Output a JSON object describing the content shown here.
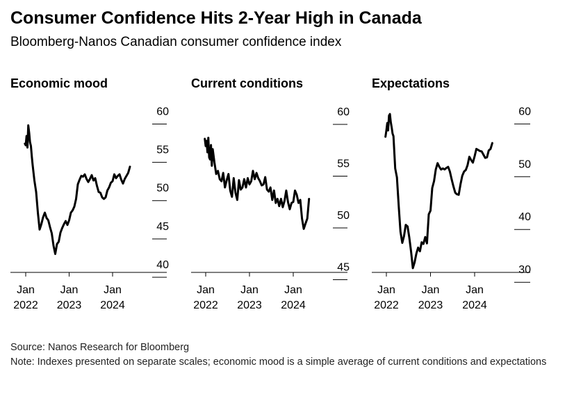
{
  "header": {
    "title": "Consumer Confidence Hits 2-Year High in Canada",
    "subtitle": "Bloomberg-Nanos Canadian consumer confidence index"
  },
  "footer": {
    "source": "Source: Nanos Research for Bloomberg",
    "note": "Note: Indexes presented on separate scales; economic mood is a simple average of current conditions and expectations"
  },
  "chart_data": [
    {
      "type": "line",
      "title": "Economic mood",
      "x_ticks": [
        {
          "label": [
            "Jan",
            "2022"
          ],
          "date": 2022.0
        },
        {
          "label": [
            "Jan",
            "2023"
          ],
          "date": 2023.0
        },
        {
          "label": [
            "Jan",
            "2024"
          ],
          "date": 2024.0
        }
      ],
      "y_ticks": [
        40,
        45,
        50,
        55,
        60
      ],
      "ylim": [
        39.0,
        60.5
      ],
      "series": [
        {
          "x": [
            2021.98,
            2022.0,
            2022.02,
            2022.04,
            2022.06,
            2022.08,
            2022.1,
            2022.12,
            2022.14,
            2022.16,
            2022.2,
            2022.24,
            2022.28,
            2022.32,
            2022.36,
            2022.4,
            2022.44,
            2022.48,
            2022.52,
            2022.56,
            2022.6,
            2022.64,
            2022.68,
            2022.72,
            2022.76,
            2022.8,
            2022.84,
            2022.88,
            2022.92,
            2022.96,
            2023.0,
            2023.04,
            2023.08,
            2023.12,
            2023.16,
            2023.2,
            2023.24,
            2023.28,
            2023.32,
            2023.36,
            2023.4,
            2023.44,
            2023.48,
            2023.52,
            2023.56,
            2023.6,
            2023.64,
            2023.68,
            2023.72,
            2023.76,
            2023.8,
            2023.84,
            2023.88,
            2023.92,
            2023.96,
            2024.0,
            2024.04,
            2024.08,
            2024.12,
            2024.16,
            2024.2,
            2024.24,
            2024.28,
            2024.32,
            2024.36,
            2024.4
          ],
          "y": [
            55.8,
            55.6,
            56.8,
            55.3,
            58.2,
            57.2,
            56.0,
            55.5,
            54.1,
            53.0,
            51.0,
            49.5,
            46.8,
            44.6,
            45.3,
            46.2,
            46.8,
            46.1,
            45.8,
            44.9,
            44.1,
            42.5,
            41.4,
            42.7,
            43.0,
            44.2,
            44.8,
            45.3,
            45.7,
            45.2,
            45.8,
            46.8,
            47.1,
            47.6,
            48.6,
            50.5,
            51.1,
            51.6,
            51.5,
            51.8,
            51.2,
            50.8,
            51.2,
            51.7,
            51.0,
            51.3,
            50.3,
            49.5,
            49.4,
            48.8,
            48.6,
            48.8,
            49.7,
            50.1,
            50.7,
            50.9,
            51.8,
            51.3,
            51.6,
            51.8,
            51.1,
            50.6,
            51.2,
            51.6,
            52.0,
            52.8
          ]
        }
      ]
    },
    {
      "type": "line",
      "title": "Current conditions",
      "x_ticks": [
        {
          "label": [
            "Jan",
            "2022"
          ],
          "date": 2022.0
        },
        {
          "label": [
            "Jan",
            "2023"
          ],
          "date": 2023.0
        },
        {
          "label": [
            "Jan",
            "2024"
          ],
          "date": 2024.0
        }
      ],
      "y_ticks": [
        45,
        50,
        55,
        60
      ],
      "ylim": [
        44.5,
        60.4
      ],
      "series": [
        {
          "x": [
            2021.98,
            2022.0,
            2022.02,
            2022.04,
            2022.06,
            2022.08,
            2022.1,
            2022.12,
            2022.14,
            2022.16,
            2022.2,
            2022.24,
            2022.28,
            2022.32,
            2022.36,
            2022.4,
            2022.44,
            2022.48,
            2022.52,
            2022.56,
            2022.6,
            2022.64,
            2022.68,
            2022.72,
            2022.76,
            2022.8,
            2022.84,
            2022.88,
            2022.92,
            2022.96,
            2023.0,
            2023.04,
            2023.08,
            2023.12,
            2023.16,
            2023.2,
            2023.24,
            2023.28,
            2023.32,
            2023.36,
            2023.4,
            2023.44,
            2023.48,
            2023.52,
            2023.56,
            2023.6,
            2023.64,
            2023.68,
            2023.72,
            2023.76,
            2023.8,
            2023.84,
            2023.88,
            2023.92,
            2023.96,
            2024.0,
            2024.04,
            2024.08,
            2024.12,
            2024.16,
            2024.2,
            2024.24,
            2024.28,
            2024.32,
            2024.36
          ],
          "y": [
            57.4,
            56.7,
            57.2,
            56.1,
            57.5,
            55.6,
            55.4,
            56.8,
            54.8,
            56.4,
            55.1,
            54.0,
            54.3,
            53.5,
            53.3,
            54.1,
            52.7,
            53.4,
            54.0,
            52.4,
            51.8,
            53.6,
            52.2,
            51.5,
            53.4,
            52.5,
            52.7,
            53.5,
            52.7,
            53.6,
            53.0,
            53.3,
            54.3,
            53.5,
            54.1,
            53.6,
            53.3,
            52.9,
            53.0,
            53.7,
            52.5,
            52.3,
            52.7,
            51.5,
            52.4,
            51.2,
            51.6,
            50.9,
            51.6,
            50.8,
            51.4,
            52.4,
            51.3,
            50.6,
            51.2,
            51.3,
            52.4,
            52.0,
            51.2,
            51.5,
            49.7,
            48.7,
            49.2,
            49.7,
            51.6
          ]
        }
      ]
    },
    {
      "type": "line",
      "title": "Expectations",
      "x_ticks": [
        {
          "label": [
            "Jan",
            "2022"
          ],
          "date": 2022.0
        },
        {
          "label": [
            "Jan",
            "2023"
          ],
          "date": 2023.0
        },
        {
          "label": [
            "Jan",
            "2024"
          ],
          "date": 2024.0
        }
      ],
      "y_ticks": [
        30,
        40,
        50,
        60
      ],
      "ylim": [
        29.5,
        60.7
      ],
      "series": [
        {
          "x": [
            2021.98,
            2022.0,
            2022.02,
            2022.04,
            2022.06,
            2022.08,
            2022.1,
            2022.12,
            2022.14,
            2022.16,
            2022.2,
            2022.24,
            2022.28,
            2022.32,
            2022.36,
            2022.4,
            2022.44,
            2022.48,
            2022.52,
            2022.56,
            2022.6,
            2022.64,
            2022.68,
            2022.72,
            2022.76,
            2022.8,
            2022.84,
            2022.88,
            2022.92,
            2022.96,
            2023.0,
            2023.04,
            2023.08,
            2023.12,
            2023.16,
            2023.2,
            2023.24,
            2023.28,
            2023.32,
            2023.36,
            2023.4,
            2023.44,
            2023.48,
            2023.52,
            2023.56,
            2023.6,
            2023.64,
            2023.68,
            2023.72,
            2023.76,
            2023.8,
            2023.84,
            2023.88,
            2023.92,
            2023.96,
            2024.0,
            2024.04,
            2024.08,
            2024.12,
            2024.16,
            2024.2,
            2024.24,
            2024.28,
            2024.32,
            2024.36,
            2024.4
          ],
          "y": [
            55.2,
            56.4,
            57.8,
            56.4,
            59.2,
            59.5,
            58.0,
            57.0,
            55.8,
            55.3,
            49.2,
            47.5,
            42.0,
            37.2,
            35.1,
            36.4,
            38.5,
            38.2,
            36.1,
            33.4,
            30.3,
            31.4,
            33.1,
            34.2,
            33.5,
            35.2,
            34.9,
            36.2,
            35.0,
            40.5,
            41.2,
            45.5,
            46.8,
            49.0,
            50.2,
            49.5,
            49.0,
            49.2,
            49.0,
            49.3,
            49.5,
            48.6,
            47.1,
            45.8,
            44.6,
            44.3,
            44.2,
            46.2,
            47.8,
            48.6,
            48.9,
            49.8,
            51.4,
            50.8,
            50.3,
            51.5,
            52.9,
            52.7,
            52.5,
            52.4,
            51.8,
            51.2,
            51.3,
            52.6,
            52.9,
            54.0
          ]
        }
      ]
    }
  ]
}
